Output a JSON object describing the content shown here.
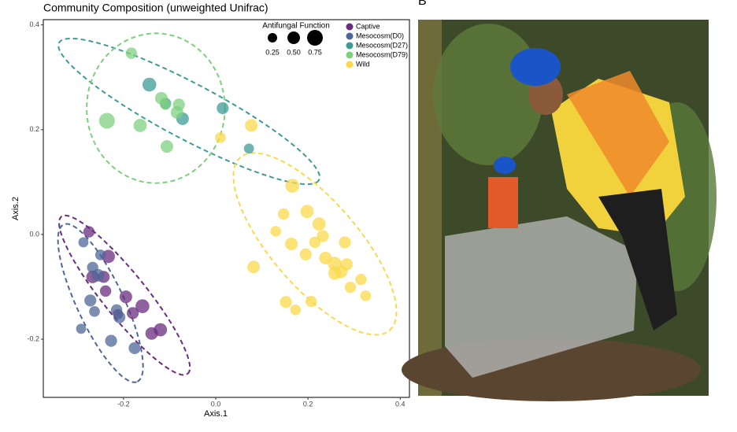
{
  "chart_data": {
    "type": "scatter",
    "title": "Community Composition (unweighted Unifrac)",
    "panel_label": "B",
    "x_label": "Axis.1",
    "y_label": "Axis.2",
    "xlim": [
      -0.374,
      0.42
    ],
    "ylim": [
      -0.311,
      0.41
    ],
    "xticks": [
      -0.2,
      {
        "value": 0,
        "label": "0.0"
      },
      0.2,
      0.4
    ],
    "yticks": [
      -0.2,
      {
        "value": 0,
        "label": "0.0"
      },
      0.2,
      0.4
    ],
    "grid": false,
    "legend": "top-right",
    "size_legend": {
      "title": "Antifungal Function",
      "values": [
        0.25,
        {
          "value": 0.5,
          "label": "0.50"
        },
        0.75
      ]
    },
    "series": [
      {
        "name": "Captive",
        "color": "#6a2c7e",
        "x": [
          -0.275,
          -0.233,
          -0.243,
          -0.267,
          -0.239,
          -0.195,
          -0.18,
          -0.159,
          -0.139,
          -0.12,
          -0.212
        ],
        "y": [
          0.005,
          -0.042,
          -0.081,
          -0.081,
          -0.108,
          -0.119,
          -0.15,
          -0.137,
          -0.189,
          -0.182,
          -0.152
        ],
        "size": [
          0.4,
          0.55,
          0.45,
          0.5,
          0.4,
          0.5,
          0.45,
          0.6,
          0.5,
          0.55,
          0.3
        ],
        "ellipse": {
          "center": [
            -0.198,
            -0.116
          ],
          "a": [
            0.137,
            -0.15
          ],
          "b": [
            0.037,
            0.026
          ]
        }
      },
      {
        "name": "Mesocosm(D0)",
        "color": "#4f6797",
        "x": [
          -0.287,
          -0.267,
          -0.255,
          -0.272,
          -0.263,
          -0.215,
          -0.209,
          -0.292,
          -0.227,
          -0.176,
          -0.25
        ],
        "y": [
          -0.015,
          -0.063,
          -0.078,
          -0.126,
          -0.147,
          -0.144,
          -0.158,
          -0.18,
          -0.203,
          -0.217,
          -0.039
        ],
        "size": [
          0.3,
          0.4,
          0.5,
          0.45,
          0.35,
          0.4,
          0.45,
          0.3,
          0.45,
          0.45,
          0.35
        ],
        "ellipse": {
          "center": [
            -0.25,
            -0.131
          ],
          "a": [
            0.08,
            -0.15
          ],
          "b": [
            0.046,
            0.019
          ]
        }
      },
      {
        "name": "Mesocosm(D27)",
        "color": "#3d9c98",
        "x": [
          -0.144,
          -0.109,
          -0.072,
          0.015,
          0.072
        ],
        "y": [
          0.286,
          0.25,
          0.221,
          0.241,
          0.164
        ],
        "size": [
          0.6,
          0.4,
          0.5,
          0.45,
          0.3
        ],
        "ellipse": {
          "center": [
            -0.058,
            0.235
          ],
          "a": [
            0.282,
            -0.131
          ],
          "b": [
            -0.028,
            -0.047
          ]
        }
      },
      {
        "name": "Mesocosm(D79)",
        "color": "#7dd07f",
        "x": [
          -0.183,
          -0.236,
          -0.164,
          -0.118,
          -0.109,
          -0.08,
          -0.106,
          -0.084
        ],
        "y": [
          0.346,
          0.217,
          0.208,
          0.26,
          0.248,
          0.248,
          0.168,
          0.233
        ],
        "size": [
          0.4,
          0.75,
          0.55,
          0.5,
          0.35,
          0.45,
          0.5,
          0.5
        ],
        "ellipse": {
          "center": [
            -0.13,
            0.241
          ],
          "a": [
            0.15,
            0
          ],
          "b": [
            0,
            0.143
          ]
        }
      },
      {
        "name": "Wild",
        "color": "#f9d94a",
        "x": [
          0.077,
          0.01,
          0.166,
          0.198,
          0.147,
          0.13,
          0.224,
          0.164,
          0.215,
          0.232,
          0.195,
          0.238,
          0.258,
          0.28,
          0.258,
          0.272,
          0.284,
          0.315,
          0.292,
          0.325,
          0.082,
          0.152,
          0.173,
          0.207
        ],
        "y": [
          0.208,
          0.185,
          0.093,
          0.044,
          0.039,
          0.006,
          0.02,
          -0.018,
          -0.015,
          -0.003,
          -0.038,
          -0.045,
          -0.056,
          -0.015,
          -0.074,
          -0.071,
          -0.057,
          -0.086,
          -0.101,
          -0.117,
          -0.062,
          -0.129,
          -0.144,
          -0.128
        ],
        "size": [
          0.5,
          0.35,
          0.6,
          0.55,
          0.4,
          0.35,
          0.55,
          0.5,
          0.4,
          0.45,
          0.45,
          0.5,
          0.6,
          0.45,
          0.55,
          0.5,
          0.45,
          0.4,
          0.4,
          0.35,
          0.5,
          0.45,
          0.35,
          0.4
        ],
        "ellipse": {
          "center": [
            0.215,
            -0.018
          ],
          "a": [
            0.162,
            -0.165
          ],
          "b": [
            0.071,
            0.054
          ]
        }
      }
    ]
  }
}
